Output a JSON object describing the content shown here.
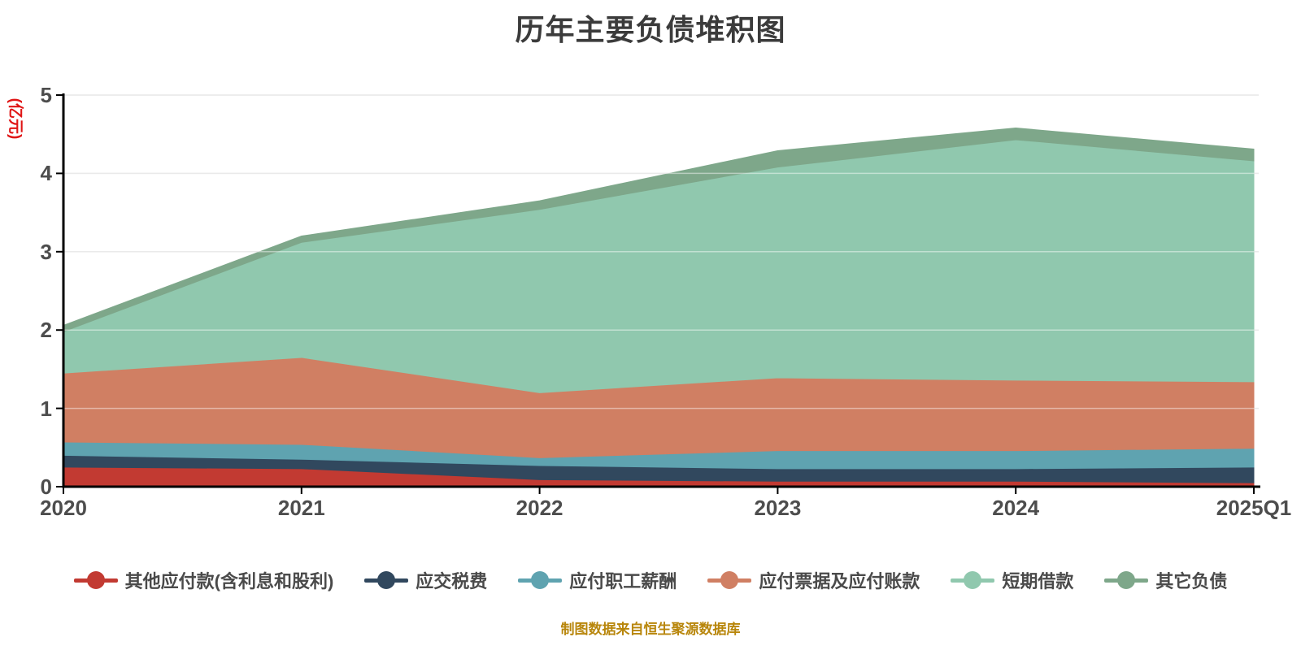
{
  "title": "历年主要负债堆积图",
  "footer": "制图数据来自恒生聚源数据库",
  "colors": {
    "title_text": "#3b3b3b",
    "axis_text": "#4d4d4d",
    "ylabel_text": "#e01616",
    "footer_text": "#b8860b",
    "axis_line": "#000000",
    "grid_line": "#d9d9d9"
  },
  "chart_data": {
    "type": "area",
    "stacked": true,
    "title": "历年主要负债堆积图",
    "ylabel": "(亿元)",
    "xlabel": "",
    "ylim": [
      0,
      5
    ],
    "yticks": [
      0,
      1,
      2,
      3,
      4,
      5
    ],
    "grid": true,
    "legend_position": "bottom",
    "x_categories": [
      "2020",
      "2021",
      "2022",
      "2023",
      "2024",
      "2025Q1"
    ],
    "series": [
      {
        "key": "other-payables",
        "name": "其他应付款(含利息和股利)",
        "color": "#c23a32",
        "values": [
          0.25,
          0.23,
          0.09,
          0.07,
          0.07,
          0.05
        ]
      },
      {
        "key": "taxes-payable",
        "name": "应交税费",
        "color": "#31485e",
        "values": [
          0.15,
          0.12,
          0.18,
          0.16,
          0.16,
          0.2
        ]
      },
      {
        "key": "payroll-payable",
        "name": "应付职工薪酬",
        "color": "#5fa3b0",
        "values": [
          0.17,
          0.19,
          0.1,
          0.23,
          0.23,
          0.24
        ]
      },
      {
        "key": "notes-accounts-payable",
        "name": "应付票据及应付账款",
        "color": "#d07f63",
        "values": [
          0.88,
          1.11,
          0.83,
          0.93,
          0.9,
          0.85
        ]
      },
      {
        "key": "short-term-borrowings",
        "name": "短期借款",
        "color": "#90c8ae",
        "values": [
          0.53,
          1.47,
          2.34,
          2.69,
          3.07,
          2.82
        ]
      },
      {
        "key": "other-liabilities",
        "name": "其它负债",
        "color": "#7ea78a",
        "values": [
          0.08,
          0.08,
          0.11,
          0.21,
          0.15,
          0.15
        ]
      }
    ]
  }
}
